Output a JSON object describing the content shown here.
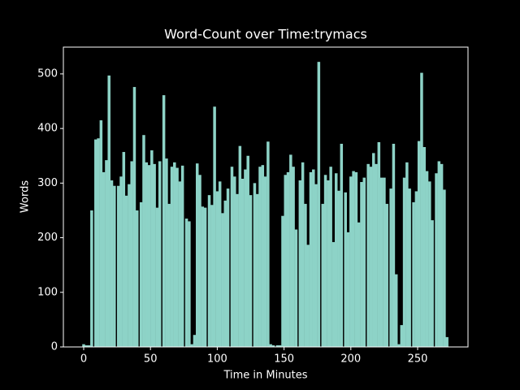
{
  "chart_data": {
    "type": "bar",
    "title": "Word-Count over Time:trymacs",
    "xlabel": "Time in Minutes",
    "ylabel": "Words",
    "color": "#8dd3c7",
    "bar_width": 2.125,
    "x": [
      0,
      2,
      4,
      6,
      9,
      11,
      13,
      15,
      17,
      19,
      21,
      23,
      26,
      28,
      30,
      32,
      34,
      36,
      38,
      40,
      43,
      45,
      47,
      49,
      51,
      53,
      55,
      57,
      60,
      62,
      64,
      66,
      68,
      70,
      72,
      74,
      77,
      79,
      81,
      83,
      85,
      87,
      89,
      91,
      94,
      96,
      98,
      100,
      102,
      104,
      106,
      108,
      111,
      113,
      115,
      117,
      119,
      121,
      123,
      125,
      128,
      130,
      132,
      134,
      136,
      138,
      140,
      142,
      145,
      147,
      149,
      151,
      153,
      155,
      157,
      159,
      162,
      164,
      166,
      168,
      170,
      172,
      174,
      176,
      179,
      181,
      183,
      185,
      187,
      189,
      191,
      193,
      196,
      198,
      200,
      202,
      204,
      206,
      208,
      210,
      213,
      215,
      217,
      219,
      221,
      223,
      225,
      227,
      230,
      232,
      234,
      236,
      238,
      240,
      242,
      244,
      247,
      249,
      251,
      253,
      255,
      257,
      259,
      261,
      264,
      266,
      268,
      270,
      272
    ],
    "values": [
      5,
      3,
      3,
      250,
      380,
      382,
      415,
      320,
      342,
      497,
      305,
      295,
      295,
      312,
      357,
      277,
      298,
      340,
      476,
      250,
      265,
      388,
      338,
      333,
      360,
      335,
      255,
      340,
      461,
      345,
      262,
      330,
      338,
      328,
      303,
      332,
      235,
      230,
      5,
      22,
      336,
      315,
      257,
      255,
      278,
      260,
      440,
      285,
      303,
      245,
      268,
      290,
      330,
      312,
      280,
      368,
      308,
      325,
      350,
      278,
      300,
      280,
      330,
      333,
      312,
      376,
      5,
      3,
      3,
      3,
      240,
      315,
      320,
      352,
      330,
      215,
      305,
      338,
      262,
      187,
      320,
      325,
      298,
      522,
      262,
      315,
      305,
      330,
      192,
      318,
      286,
      372,
      283,
      210,
      312,
      322,
      320,
      228,
      302,
      310,
      335,
      330,
      355,
      335,
      375,
      310,
      310,
      262,
      290,
      372,
      133,
      5,
      40,
      310,
      338,
      290,
      265,
      285,
      377,
      502,
      366,
      322,
      303,
      232,
      318,
      340,
      335,
      288,
      18
    ],
    "xlim": [
      -15.2,
      287.7
    ],
    "ylim": [
      0,
      549
    ],
    "xticks": [
      0,
      50,
      100,
      150,
      200,
      250
    ],
    "yticks": [
      0,
      100,
      200,
      300,
      400,
      500
    ]
  }
}
